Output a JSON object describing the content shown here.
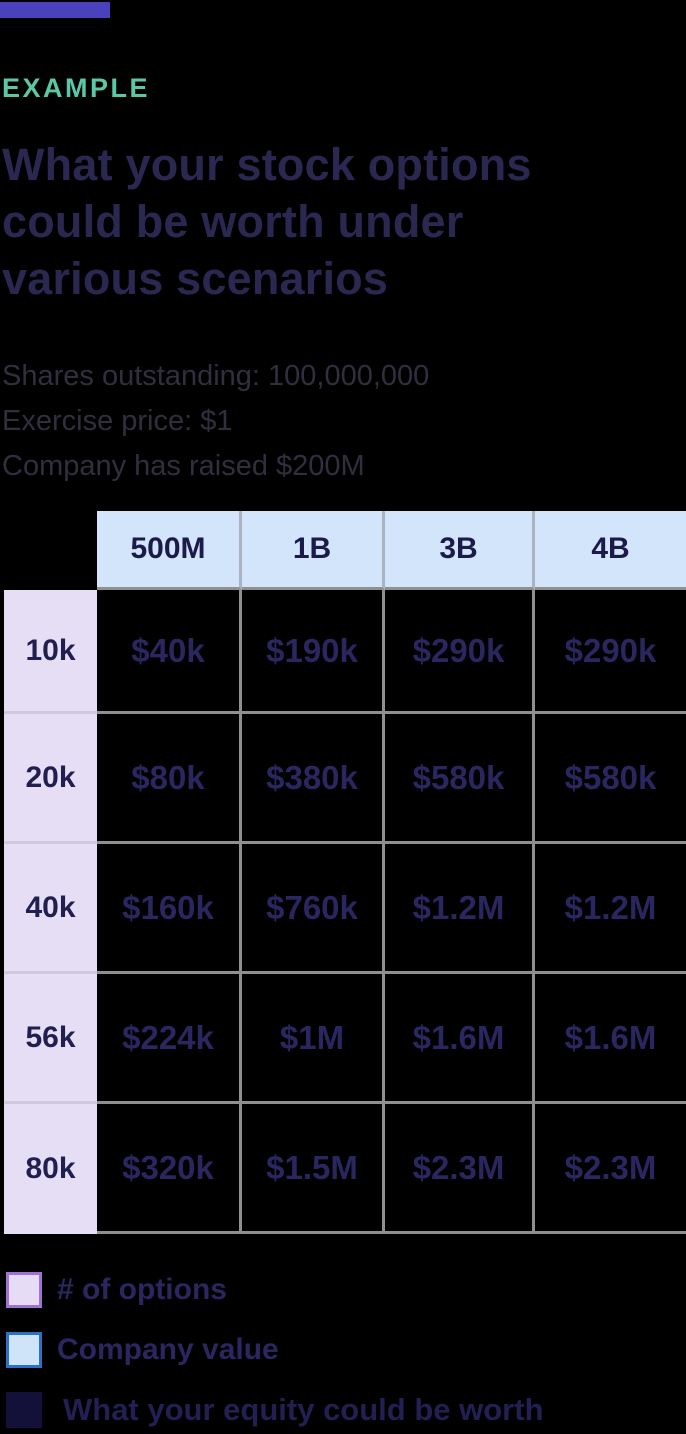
{
  "accent_bar_color": "#4a42bd",
  "eyebrow": {
    "label": "EXAMPLE",
    "color": "#5cc7a5"
  },
  "title_lines": [
    "What your stock options",
    "could be worth under",
    "various scenarios"
  ],
  "assumptions": {
    "line1": "Shares outstanding: 100,000,000",
    "line2": "Exercise price: $1",
    "line3": "Company has raised $200M"
  },
  "chart_data": {
    "type": "table",
    "title": "What your stock options could be worth under various scenarios",
    "column_axis_label": "Company value",
    "row_axis_label": "# of options",
    "columns": [
      "500M",
      "1B",
      "3B",
      "4B"
    ],
    "rows": [
      "10k",
      "20k",
      "40k",
      "56k",
      "80k"
    ],
    "values": [
      [
        "$40k",
        "$190k",
        "$290k",
        "$290k"
      ],
      [
        "$80k",
        "$380k",
        "$580k",
        "$580k"
      ],
      [
        "$160k",
        "$760k",
        "$1.2M",
        "$1.2M"
      ],
      [
        "$224k",
        "$1M",
        "$1.6M",
        "$1.6M"
      ],
      [
        "$320k",
        "$1.5M",
        "$2.3M",
        "$2.3M"
      ]
    ],
    "column_header_bg": "#d3e5fa",
    "row_header_bg": "#e6def4",
    "grid_color": "#8f8f8f"
  },
  "legend": {
    "items": [
      {
        "label": "# of options",
        "swatch_fill": "#e7dcf6",
        "swatch_border": "#a172d6"
      },
      {
        "label": "Company value",
        "swatch_fill": "#cfe3f9",
        "swatch_border": "#2e6fc8"
      },
      {
        "label": "What your equity could be worth",
        "swatch_fill": "#131139",
        "swatch_border": "#131139"
      }
    ]
  }
}
